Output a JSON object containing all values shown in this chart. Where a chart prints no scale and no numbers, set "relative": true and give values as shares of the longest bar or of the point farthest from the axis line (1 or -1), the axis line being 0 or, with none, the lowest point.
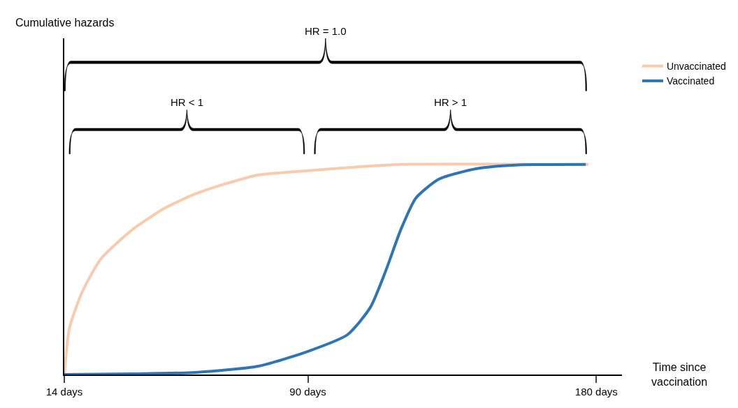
{
  "chart_data": {
    "type": "line",
    "relative": true,
    "xlabel": "Time since vaccination",
    "annotations": [
      "HR = 1.0",
      "HR < 1",
      "HR > 1",
      "Cumulative hazards"
    ],
    "xlim": [
      14,
      188
    ],
    "xticks": [
      {
        "value": 14,
        "label": "14 days"
      },
      {
        "value": 90,
        "label": "90 days"
      },
      {
        "value": 180,
        "label": "180 days"
      }
    ],
    "legend": "right",
    "marker": "none",
    "line_style": "solid",
    "series": [
      {
        "name": "Unvaccinated",
        "color": "#f8cbad",
        "x": [
          14,
          15.6,
          19.5,
          25.4,
          35.3,
          45.1,
          54.9,
          64.8,
          74.6,
          90,
          107,
          119,
          177.6
        ],
        "values": [
          0,
          0.22,
          0.39,
          0.55,
          0.69,
          0.79,
          0.86,
          0.91,
          0.95,
          0.97,
          0.99,
          1.0,
          1.0
        ]
      },
      {
        "name": "Vaccinated",
        "color": "#2e75b6",
        "x": [
          14,
          35.3,
          54.9,
          74.6,
          90,
          102.4,
          109.5,
          114.2,
          119,
          123.7,
          130.9,
          142.7,
          154.6,
          176.7
        ],
        "values": [
          0,
          0.003,
          0.01,
          0.04,
          0.11,
          0.19,
          0.32,
          0.49,
          0.69,
          0.84,
          0.93,
          0.98,
          0.997,
          1.0
        ]
      }
    ]
  }
}
